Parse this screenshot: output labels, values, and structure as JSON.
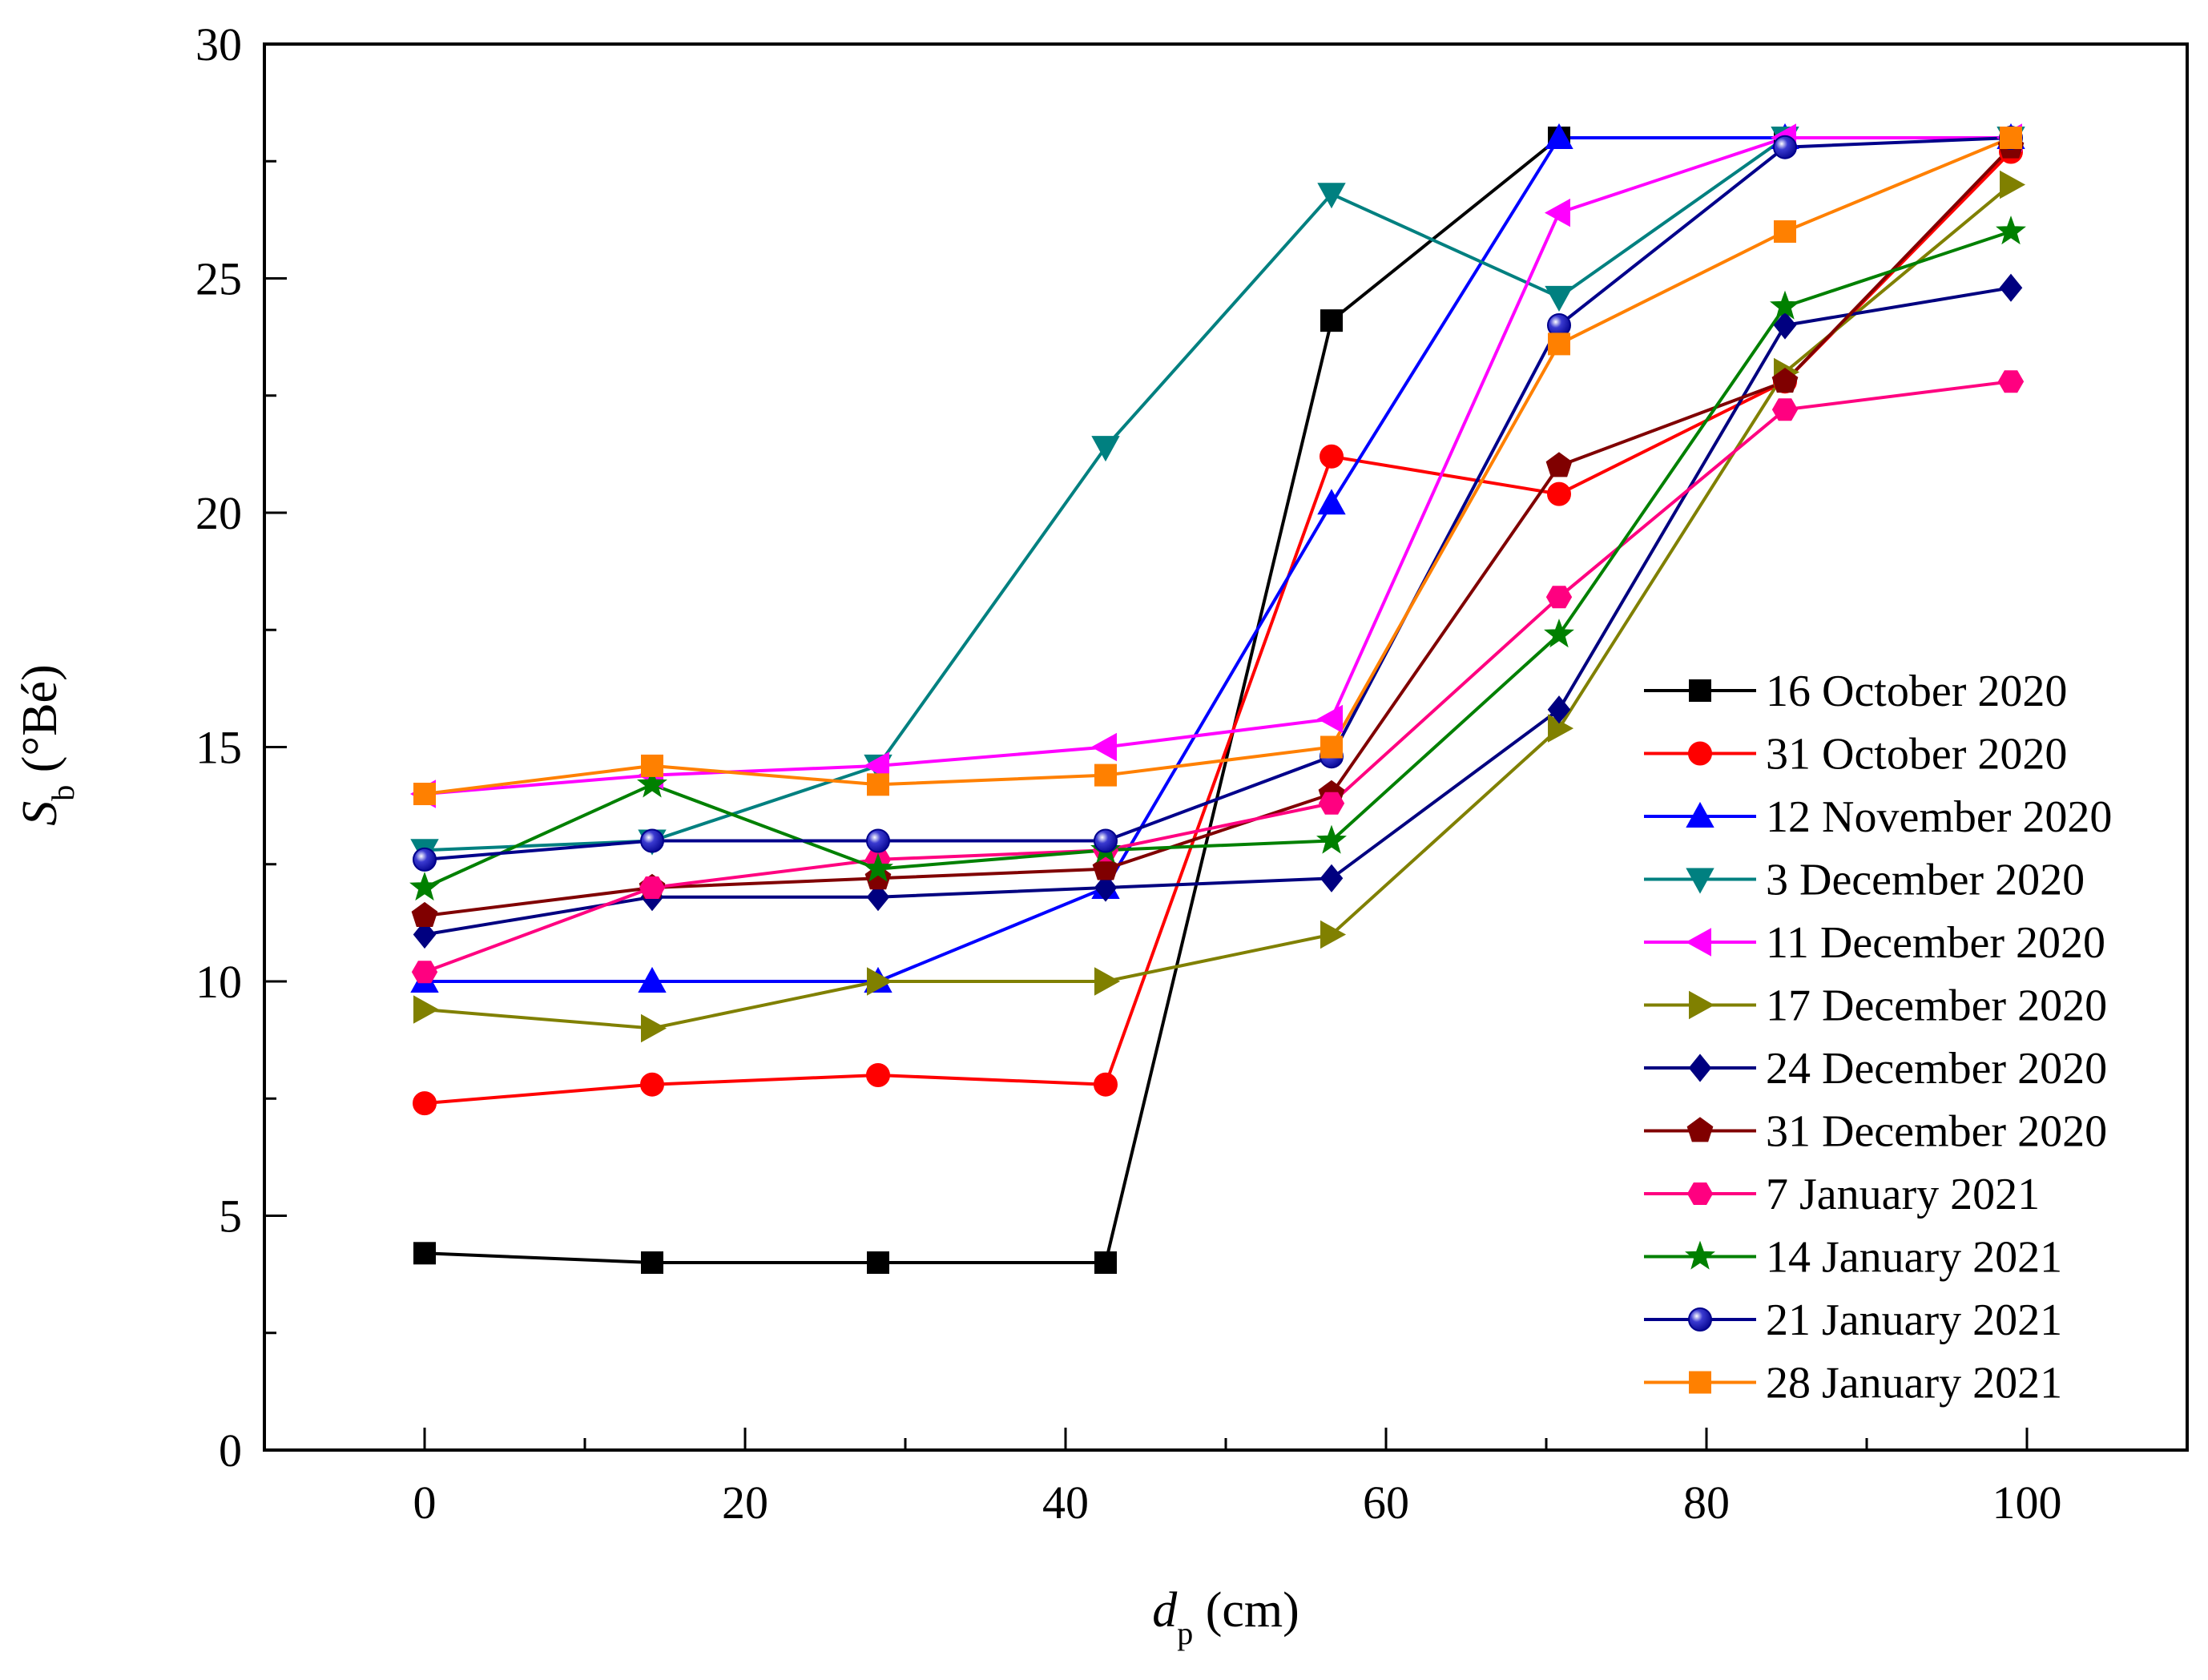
{
  "chart_data": {
    "type": "line",
    "title": "",
    "xlabel": {
      "symbol": "d",
      "subscript": "p",
      "unit": " (cm)"
    },
    "ylabel": {
      "symbol": "S",
      "subscript": "b",
      "unit": " (°Bé)"
    },
    "xlim": [
      -10,
      110
    ],
    "ylim": [
      0,
      30
    ],
    "xticks": [
      0,
      20,
      40,
      60,
      80,
      100
    ],
    "yticks": [
      0,
      5,
      10,
      15,
      20,
      25,
      30
    ],
    "xtick_labels": [
      "0",
      "20",
      "40",
      "60",
      "80",
      "100"
    ],
    "ytick_labels": [
      "0",
      "5",
      "10",
      "15",
      "20",
      "25",
      "30"
    ],
    "legend_position": "right",
    "x": [
      0,
      14.2,
      28.3,
      42.5,
      56.6,
      70.8,
      84.9,
      99
    ],
    "series": [
      {
        "name": "16 October 2020",
        "color": "#000000",
        "marker": "square",
        "values": [
          4.2,
          4.0,
          4.0,
          4.0,
          24.1,
          28.0,
          28.0,
          28.0
        ]
      },
      {
        "name": "31 October 2020",
        "color": "#ff0000",
        "marker": "circle",
        "values": [
          7.4,
          7.8,
          8.0,
          7.8,
          21.2,
          20.4,
          22.8,
          27.7
        ]
      },
      {
        "name": "12 November 2020",
        "color": "#0000ff",
        "marker": "triangle-up",
        "values": [
          10.0,
          10.0,
          10.0,
          12.0,
          20.2,
          28.0,
          28.0,
          28.0
        ]
      },
      {
        "name": "3 December 2020",
        "color": "#008080",
        "marker": "triangle-down",
        "values": [
          12.8,
          13.0,
          14.6,
          21.4,
          26.8,
          24.6,
          28.0,
          28.0
        ]
      },
      {
        "name": "11 December 2020",
        "color": "#ff00ff",
        "marker": "triangle-left",
        "values": [
          14.0,
          14.4,
          14.6,
          15.0,
          15.6,
          26.4,
          28.0,
          28.0
        ]
      },
      {
        "name": "17 December 2020",
        "color": "#808000",
        "marker": "triangle-right",
        "values": [
          9.4,
          9.0,
          10.0,
          10.0,
          11.0,
          15.4,
          23.0,
          27.0
        ]
      },
      {
        "name": "24 December 2020",
        "color": "#000080",
        "marker": "diamond",
        "values": [
          11.0,
          11.8,
          11.8,
          12.0,
          12.2,
          15.8,
          24.0,
          24.8
        ]
      },
      {
        "name": "31 December 2020",
        "color": "#800000",
        "marker": "pentagon",
        "values": [
          11.4,
          12.0,
          12.2,
          12.4,
          14.0,
          21.0,
          22.8,
          27.8
        ]
      },
      {
        "name": "7 January 2021",
        "color": "#ff0080",
        "marker": "hexagon",
        "values": [
          10.2,
          12.0,
          12.6,
          12.8,
          13.8,
          18.2,
          22.2,
          22.8
        ]
      },
      {
        "name": "14 January 2021",
        "color": "#008000",
        "marker": "star",
        "values": [
          12.0,
          14.2,
          12.4,
          12.8,
          13.0,
          17.4,
          24.4,
          26.0
        ]
      },
      {
        "name": "21 January 2021",
        "color": "#00008b",
        "marker": "sphere",
        "values": [
          12.6,
          13.0,
          13.0,
          13.0,
          14.8,
          24.0,
          27.8,
          28.0
        ]
      },
      {
        "name": "28 January 2021",
        "color": "#ff8000",
        "marker": "square",
        "values": [
          14.0,
          14.6,
          14.2,
          14.4,
          15.0,
          23.6,
          26.0,
          28.0
        ]
      }
    ]
  }
}
